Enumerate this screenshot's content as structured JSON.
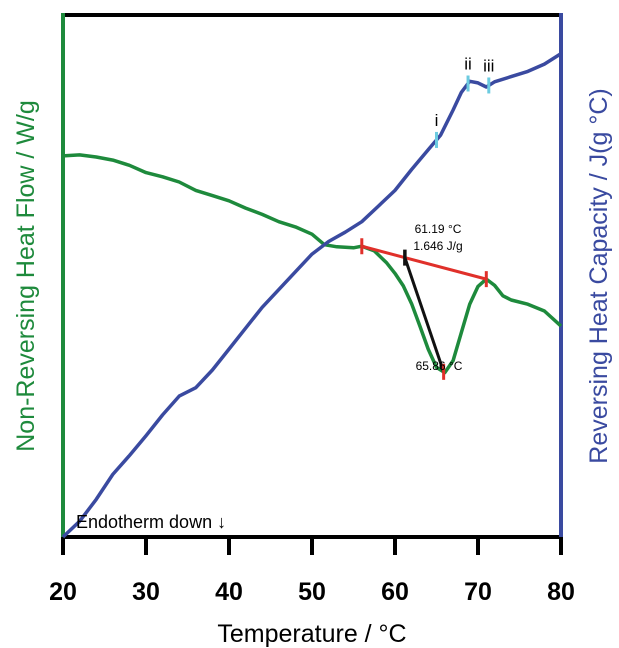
{
  "chart_data": {
    "type": "line",
    "xlabel": "Temperature / °C",
    "ylabel_left": "Non-Reversing Heat Flow / W/g",
    "ylabel_right": "Reversing Heat Capacity / J(g °C)",
    "xlim": [
      20,
      80
    ],
    "x_ticks": [
      20,
      30,
      40,
      50,
      60,
      70,
      80
    ],
    "y_ticks_shown": false,
    "grid": false,
    "note": "Endotherm down ↓",
    "colors": {
      "nonreversing": "#1e8a3c",
      "reversing": "#3a4aa0",
      "baseline": "#e0302a",
      "tangent": "#111111",
      "markers": "#6ccbe0"
    },
    "series": [
      {
        "name": "Non-Reversing Heat Flow",
        "axis": "left",
        "points": [
          [
            20,
            0.73
          ],
          [
            22,
            0.732
          ],
          [
            24,
            0.728
          ],
          [
            26,
            0.722
          ],
          [
            28,
            0.712
          ],
          [
            30,
            0.698
          ],
          [
            32,
            0.69
          ],
          [
            34,
            0.68
          ],
          [
            36,
            0.664
          ],
          [
            38,
            0.654
          ],
          [
            40,
            0.644
          ],
          [
            42,
            0.63
          ],
          [
            44,
            0.618
          ],
          [
            46,
            0.604
          ],
          [
            48,
            0.594
          ],
          [
            50,
            0.58
          ],
          [
            51.5,
            0.56
          ],
          [
            53,
            0.556
          ],
          [
            55,
            0.554
          ],
          [
            56,
            0.557
          ],
          [
            57.5,
            0.548
          ],
          [
            59,
            0.525
          ],
          [
            60,
            0.505
          ],
          [
            61,
            0.481
          ],
          [
            62,
            0.447
          ],
          [
            63,
            0.404
          ],
          [
            64,
            0.36
          ],
          [
            65,
            0.325
          ],
          [
            66,
            0.315
          ],
          [
            67,
            0.338
          ],
          [
            68,
            0.392
          ],
          [
            69,
            0.446
          ],
          [
            70,
            0.48
          ],
          [
            71,
            0.494
          ],
          [
            72,
            0.482
          ],
          [
            73,
            0.462
          ],
          [
            74,
            0.454
          ],
          [
            76,
            0.446
          ],
          [
            78,
            0.433
          ],
          [
            80,
            0.404
          ]
        ]
      },
      {
        "name": "Reversing Heat Capacity",
        "axis": "right",
        "points": [
          [
            20,
            0.0
          ],
          [
            22,
            0.03
          ],
          [
            24,
            0.072
          ],
          [
            26,
            0.12
          ],
          [
            28,
            0.156
          ],
          [
            30,
            0.194
          ],
          [
            32,
            0.234
          ],
          [
            34,
            0.27
          ],
          [
            36,
            0.286
          ],
          [
            38,
            0.32
          ],
          [
            40,
            0.36
          ],
          [
            42,
            0.4
          ],
          [
            44,
            0.44
          ],
          [
            46,
            0.474
          ],
          [
            48,
            0.508
          ],
          [
            50,
            0.542
          ],
          [
            52,
            0.566
          ],
          [
            54,
            0.584
          ],
          [
            56,
            0.604
          ],
          [
            58,
            0.634
          ],
          [
            60,
            0.664
          ],
          [
            62,
            0.704
          ],
          [
            64,
            0.742
          ],
          [
            65.5,
            0.77
          ],
          [
            67,
            0.818
          ],
          [
            68,
            0.852
          ],
          [
            69,
            0.873
          ],
          [
            70,
            0.87
          ],
          [
            71,
            0.862
          ],
          [
            72,
            0.872
          ],
          [
            74,
            0.882
          ],
          [
            76,
            0.892
          ],
          [
            78,
            0.906
          ],
          [
            80,
            0.926
          ]
        ]
      }
    ],
    "annotations": [
      {
        "label": "i",
        "x": 65
      },
      {
        "label": "ii",
        "x": 68.8
      },
      {
        "label": "iii",
        "x": 71.3
      }
    ],
    "transition": {
      "onset_temperature": "61.19 °C",
      "enthalpy": "1.646 J/g",
      "peak_temperature": "65.86 °C",
      "baseline_start": 56.0,
      "baseline_end": 71.0,
      "onset_x": 61.19,
      "peak_x": 65.86
    }
  }
}
